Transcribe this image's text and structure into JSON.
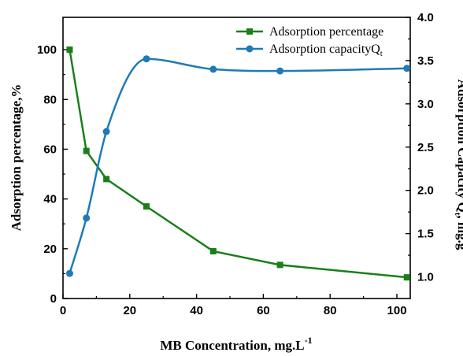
{
  "chart_data": {
    "type": "line",
    "title": "",
    "xlabel": "MB Concentration, mg.L",
    "xlabel_superscript": "-1",
    "ylabel_left": "Adsorption percentage,%",
    "ylabel_right": "Adsorption Capacity Q",
    "ylabel_right_subscript": "t",
    "ylabel_right_unit": ", mg.g",
    "ylabel_right_superscript": "-1",
    "xlim": [
      0,
      104
    ],
    "ylim_left": [
      0,
      113
    ],
    "ylim_right": [
      0.75,
      4.0
    ],
    "x_ticks": [
      0,
      20,
      40,
      60,
      80,
      100
    ],
    "y_left_ticks": [
      0,
      20,
      40,
      60,
      80,
      100
    ],
    "y_right_ticks": [
      1.0,
      1.5,
      2.0,
      2.5,
      3.0,
      3.5,
      4.0
    ],
    "y_right_tick_labels": [
      "1.0",
      "1.5",
      "2.0",
      "2.5",
      "3.0",
      "3.5",
      "4.0"
    ],
    "grid": false,
    "legend_position": "top-right",
    "series": [
      {
        "name": "Adsorption percentage",
        "axis": "left",
        "color": "#1a7f1a",
        "marker": "square",
        "x": [
          2,
          7,
          13,
          25,
          45,
          65,
          103
        ],
        "values": [
          100,
          59.3,
          48,
          37,
          19,
          13.5,
          8.5
        ]
      },
      {
        "name": "Adsorption capacityQ",
        "name_subscript": "t",
        "axis": "right",
        "color": "#1f7ab8",
        "marker": "circle",
        "x": [
          2,
          7,
          13,
          25,
          45,
          65,
          103
        ],
        "values": [
          1.04,
          1.68,
          2.68,
          3.52,
          3.4,
          3.38,
          3.41
        ]
      }
    ]
  }
}
